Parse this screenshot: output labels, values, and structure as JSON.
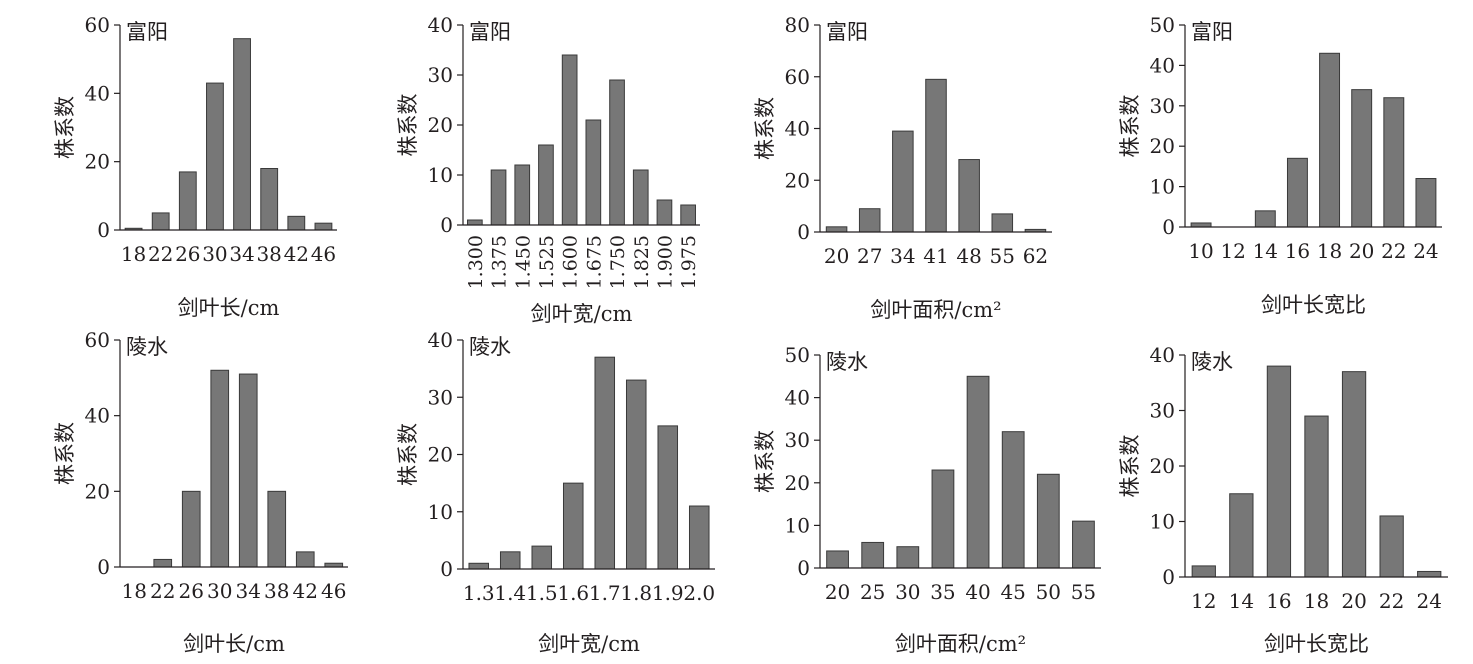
{
  "colors": {
    "bar": "#777777",
    "bar_stroke": "#3a3a3a",
    "axis": "#231f20",
    "text": "#231f20"
  },
  "chart_data": [
    {
      "type": "bar",
      "title": "富阳",
      "ylabel": "株系数",
      "xlabel": "剑叶长/cm",
      "categories": [
        "18",
        "22",
        "26",
        "30",
        "34",
        "38",
        "42",
        "46"
      ],
      "values": [
        0.5,
        5,
        17,
        43,
        56,
        18,
        4,
        2
      ],
      "ylim": [
        0,
        60
      ],
      "yticks": [
        0,
        20,
        40,
        60
      ],
      "rotate_labels": false,
      "grid": false,
      "legend": "none"
    },
    {
      "type": "bar",
      "title": "富阳",
      "ylabel": "株系数",
      "xlabel": "剑叶宽/cm",
      "categories": [
        "1.300",
        "1.375",
        "1.450",
        "1.525",
        "1.600",
        "1.675",
        "1.750",
        "1.825",
        "1.900",
        "1.975"
      ],
      "values": [
        1,
        11,
        12,
        16,
        34,
        21,
        29,
        11,
        5,
        4
      ],
      "ylim": [
        0,
        40
      ],
      "yticks": [
        0,
        10,
        20,
        30,
        40
      ],
      "rotate_labels": true,
      "grid": false,
      "legend": "none"
    },
    {
      "type": "bar",
      "title": "富阳",
      "ylabel": "株系数",
      "xlabel": "剑叶面积/cm²",
      "categories": [
        "20",
        "27",
        "34",
        "41",
        "48",
        "55",
        "62"
      ],
      "values": [
        2,
        9,
        39,
        59,
        28,
        7,
        1
      ],
      "ylim": [
        0,
        80
      ],
      "yticks": [
        0,
        20,
        40,
        60,
        80
      ],
      "rotate_labels": false,
      "grid": false,
      "legend": "none"
    },
    {
      "type": "bar",
      "title": "富阳",
      "ylabel": "株系数",
      "xlabel": "剑叶长宽比",
      "categories": [
        "10",
        "12",
        "14",
        "16",
        "18",
        "20",
        "22",
        "24"
      ],
      "values": [
        1,
        0,
        4,
        17,
        43,
        34,
        32,
        12
      ],
      "ylim": [
        0,
        50
      ],
      "yticks": [
        0,
        10,
        20,
        30,
        40,
        50
      ],
      "rotate_labels": false,
      "grid": false,
      "legend": "none"
    },
    {
      "type": "bar",
      "title": "陵水",
      "ylabel": "株系数",
      "xlabel": "剑叶长/cm",
      "categories": [
        "18",
        "22",
        "26",
        "30",
        "34",
        "38",
        "42",
        "46"
      ],
      "values": [
        0,
        2,
        20,
        52,
        51,
        20,
        4,
        1
      ],
      "ylim": [
        0,
        60
      ],
      "yticks": [
        0,
        20,
        40,
        60
      ],
      "rotate_labels": false,
      "grid": false,
      "legend": "none"
    },
    {
      "type": "bar",
      "title": "陵水",
      "ylabel": "株系数",
      "xlabel": "剑叶宽/cm",
      "categories": [
        "1.3",
        "1.4",
        "1.5",
        "1.6",
        "1.7",
        "1.8",
        "1.9",
        "2.0"
      ],
      "values": [
        1,
        3,
        4,
        15,
        37,
        33,
        25,
        11
      ],
      "ylim": [
        0,
        40
      ],
      "yticks": [
        0,
        10,
        20,
        30,
        40
      ],
      "rotate_labels": false,
      "grid": false,
      "legend": "none"
    },
    {
      "type": "bar",
      "title": "陵水",
      "ylabel": "株系数",
      "xlabel": "剑叶面积/cm²",
      "categories": [
        "20",
        "25",
        "30",
        "35",
        "40",
        "45",
        "50",
        "55"
      ],
      "values": [
        4,
        6,
        5,
        23,
        45,
        32,
        22,
        11
      ],
      "ylim": [
        0,
        50
      ],
      "yticks": [
        0,
        10,
        20,
        30,
        40,
        50
      ],
      "rotate_labels": false,
      "grid": false,
      "legend": "none"
    },
    {
      "type": "bar",
      "title": "陵水",
      "ylabel": "株系数",
      "xlabel": "剑叶长宽比",
      "categories": [
        "12",
        "14",
        "16",
        "18",
        "20",
        "22",
        "24"
      ],
      "values": [
        2,
        15,
        38,
        29,
        37,
        11,
        1
      ],
      "ylim": [
        0,
        40
      ],
      "yticks": [
        0,
        10,
        20,
        30,
        40
      ],
      "rotate_labels": false,
      "grid": false,
      "legend": "none"
    }
  ]
}
